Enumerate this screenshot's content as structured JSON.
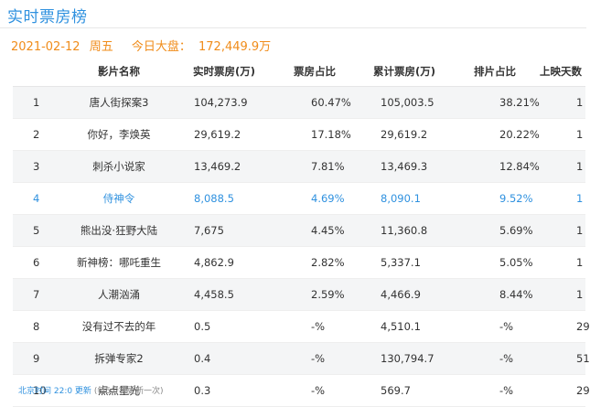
{
  "page": {
    "title": "实时票房榜"
  },
  "summary": {
    "date": "2021-02-12",
    "weekday": "周五",
    "label": "今日大盘：",
    "total": "172,449.9万"
  },
  "table": {
    "headers": [
      "",
      "影片名称",
      "实时票房(万)",
      "票房占比",
      "累计票房(万)",
      "排片占比",
      "上映天数"
    ],
    "rows": [
      {
        "rank": "1",
        "name": "唐人街探案3",
        "realtime": "104,273.9",
        "share": "60.47%",
        "cumulative": "105,003.5",
        "slot": "38.21%",
        "days": "1"
      },
      {
        "rank": "2",
        "name": "你好，李焕英",
        "realtime": "29,619.2",
        "share": "17.18%",
        "cumulative": "29,619.2",
        "slot": "20.22%",
        "days": "1"
      },
      {
        "rank": "3",
        "name": "刺杀小说家",
        "realtime": "13,469.2",
        "share": "7.81%",
        "cumulative": "13,469.3",
        "slot": "12.84%",
        "days": "1"
      },
      {
        "rank": "4",
        "name": "侍神令",
        "realtime": "8,088.5",
        "share": "4.69%",
        "cumulative": "8,090.1",
        "slot": "9.52%",
        "days": "1"
      },
      {
        "rank": "5",
        "name": "熊出没·狂野大陆",
        "realtime": "7,675",
        "share": "4.45%",
        "cumulative": "11,360.8",
        "slot": "5.69%",
        "days": "1"
      },
      {
        "rank": "6",
        "name": "新神榜：哪吒重生",
        "realtime": "4,862.9",
        "share": "2.82%",
        "cumulative": "5,337.1",
        "slot": "5.05%",
        "days": "1"
      },
      {
        "rank": "7",
        "name": "人潮汹涌",
        "realtime": "4,458.5",
        "share": "2.59%",
        "cumulative": "4,466.9",
        "slot": "8.44%",
        "days": "1"
      },
      {
        "rank": "8",
        "name": "没有过不去的年",
        "realtime": "0.5",
        "share": "-%",
        "cumulative": "4,510.1",
        "slot": "-%",
        "days": "29"
      },
      {
        "rank": "9",
        "name": "拆弹专家2",
        "realtime": "0.4",
        "share": "-%",
        "cumulative": "130,794.7",
        "slot": "-%",
        "days": "51"
      },
      {
        "rank": "10",
        "name": "点点星光",
        "realtime": "0.3",
        "share": "-%",
        "cumulative": "569.7",
        "slot": "-%",
        "days": "29"
      }
    ]
  },
  "footer": {
    "time": "北京时间 22:0 更新",
    "note": "(每5分钟更新一次)"
  },
  "colors": {
    "accent_blue": "#2f91df",
    "accent_orange": "#f08c1a"
  }
}
